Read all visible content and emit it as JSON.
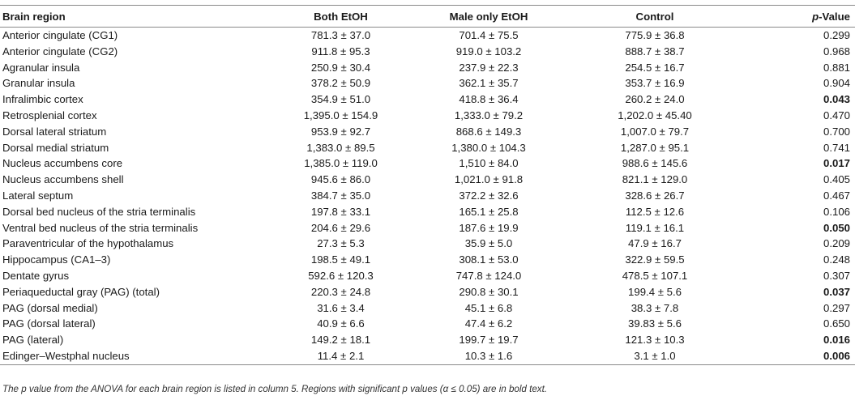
{
  "table": {
    "headers": {
      "region": "Brain region",
      "both": "Both EtOH",
      "male": "Male only EtOH",
      "control": "Control",
      "p_prefix": "p",
      "p_suffix": "-Value"
    },
    "rows": [
      {
        "region": "Anterior cingulate (CG1)",
        "both": "781.3 ± 37.0",
        "male": "701.4 ± 75.5",
        "control": "775.9 ± 36.8",
        "p": "0.299",
        "significant": false
      },
      {
        "region": "Anterior cingulate (CG2)",
        "both": "911.8 ± 95.3",
        "male": "919.0 ± 103.2",
        "control": "888.7 ± 38.7",
        "p": "0.968",
        "significant": false
      },
      {
        "region": "Agranular insula",
        "both": "250.9 ± 30.4",
        "male": "237.9 ± 22.3",
        "control": "254.5 ± 16.7",
        "p": "0.881",
        "significant": false
      },
      {
        "region": "Granular insula",
        "both": "378.2 ± 50.9",
        "male": "362.1 ± 35.7",
        "control": "353.7 ± 16.9",
        "p": "0.904",
        "significant": false
      },
      {
        "region": "Infralimbic cortex",
        "both": "354.9 ± 51.0",
        "male": "418.8 ± 36.4",
        "control": "260.2 ± 24.0",
        "p": "0.043",
        "significant": true
      },
      {
        "region": "Retrosplenial cortex",
        "both": "1,395.0 ± 154.9",
        "male": "1,333.0 ± 79.2",
        "control": "1,202.0 ± 45.40",
        "p": "0.470",
        "significant": false
      },
      {
        "region": "Dorsal lateral striatum",
        "both": "953.9 ± 92.7",
        "male": "868.6 ± 149.3",
        "control": "1,007.0 ± 79.7",
        "p": "0.700",
        "significant": false
      },
      {
        "region": "Dorsal medial striatum",
        "both": "1,383.0 ± 89.5",
        "male": "1,380.0 ± 104.3",
        "control": "1,287.0 ± 95.1",
        "p": "0.741",
        "significant": false
      },
      {
        "region": "Nucleus accumbens core",
        "both": "1,385.0 ± 119.0",
        "male": "1,510 ± 84.0",
        "control": "988.6 ± 145.6",
        "p": "0.017",
        "significant": true
      },
      {
        "region": "Nucleus accumbens shell",
        "both": "945.6 ± 86.0",
        "male": "1,021.0 ± 91.8",
        "control": "821.1 ± 129.0",
        "p": "0.405",
        "significant": false
      },
      {
        "region": "Lateral septum",
        "both": "384.7 ± 35.0",
        "male": "372.2 ± 32.6",
        "control": "328.6 ± 26.7",
        "p": "0.467",
        "significant": false
      },
      {
        "region": "Dorsal bed nucleus of the stria terminalis",
        "both": "197.8 ± 33.1",
        "male": "165.1 ± 25.8",
        "control": "112.5 ± 12.6",
        "p": "0.106",
        "significant": false
      },
      {
        "region": "Ventral bed nucleus of the stria terminalis",
        "both": "204.6 ± 29.6",
        "male": "187.6 ± 19.9",
        "control": "119.1 ± 16.1",
        "p": "0.050",
        "significant": true
      },
      {
        "region": "Paraventricular of the hypothalamus",
        "both": "27.3 ± 5.3",
        "male": "35.9 ± 5.0",
        "control": "47.9 ± 16.7",
        "p": "0.209",
        "significant": false
      },
      {
        "region": "Hippocampus (CA1–3)",
        "both": "198.5 ± 49.1",
        "male": "308.1 ± 53.0",
        "control": "322.9 ± 59.5",
        "p": "0.248",
        "significant": false
      },
      {
        "region": "Dentate gyrus",
        "both": "592.6 ± 120.3",
        "male": "747.8 ± 124.0",
        "control": "478.5 ± 107.1",
        "p": "0.307",
        "significant": false
      },
      {
        "region": "Periaqueductal gray (PAG) (total)",
        "both": "220.3 ± 24.8",
        "male": "290.8 ± 30.1",
        "control": "199.4 ± 5.6",
        "p": "0.037",
        "significant": true
      },
      {
        "region": "PAG (dorsal medial)",
        "both": "31.6 ± 3.4",
        "male": "45.1 ± 6.8",
        "control": "38.3 ± 7.8",
        "p": "0.297",
        "significant": false
      },
      {
        "region": "PAG (dorsal lateral)",
        "both": "40.9 ± 6.6",
        "male": "47.4 ± 6.2",
        "control": "39.83 ± 5.6",
        "p": "0.650",
        "significant": false
      },
      {
        "region": "PAG (lateral)",
        "both": "149.2 ± 18.1",
        "male": "199.7 ± 19.7",
        "control": "121.3 ± 10.3",
        "p": "0.016",
        "significant": true
      },
      {
        "region": "Edinger–Westphal nucleus",
        "both": "11.4 ± 2.1",
        "male": "10.3 ± 1.6",
        "control": "3.1 ± 1.0",
        "p": "0.006",
        "significant": true
      }
    ]
  },
  "footnote": "The p value from the ANOVA for each brain region is listed in column 5. Regions with significant p values (α ≤ 0.05) are in bold text."
}
